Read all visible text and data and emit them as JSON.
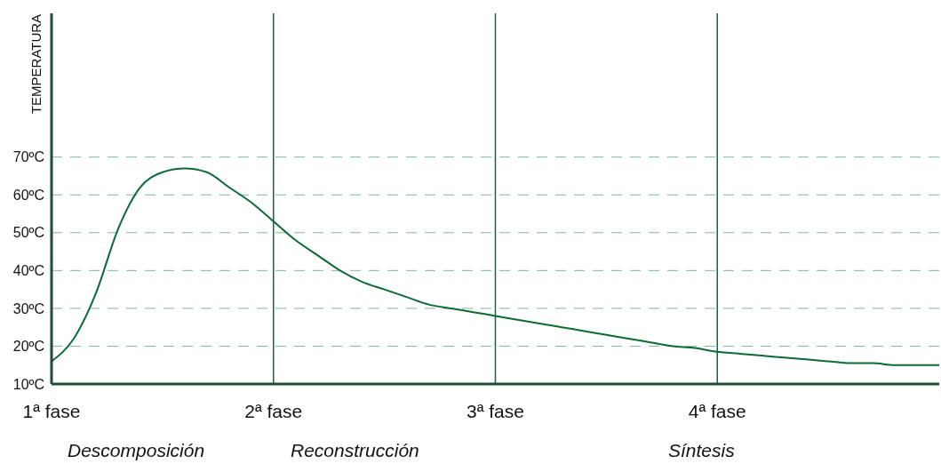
{
  "chart_data": {
    "type": "line",
    "ylabel": "TEMPERATURA",
    "categories": [
      "1ª fase",
      null,
      null,
      null,
      null,
      null,
      null,
      null,
      null,
      null,
      "2ª fase",
      null,
      null,
      null,
      null,
      null,
      null,
      null,
      null,
      null,
      "3ª fase",
      null,
      null,
      null,
      null,
      null,
      null,
      null,
      null,
      null,
      "4ª fase",
      null,
      null,
      null,
      null,
      null,
      null,
      null,
      null,
      null,
      null
    ],
    "series": [
      {
        "color": "#0b6b35",
        "values": [
          16,
          22,
          34,
          51,
          62,
          66,
          67,
          66,
          62,
          58,
          53,
          48,
          44,
          40,
          37,
          35,
          33,
          31,
          30,
          29,
          28,
          27,
          26,
          25,
          24,
          23,
          22,
          21,
          20,
          19.5,
          18.5,
          18,
          17.5,
          17,
          16.5,
          16,
          15.5,
          15.5,
          15,
          15,
          15
        ]
      }
    ],
    "ylim": [
      10,
      108
    ],
    "yticks": [
      {
        "value": 10,
        "label": "10ºC"
      },
      {
        "value": 20,
        "label": "20ºC"
      },
      {
        "value": 30,
        "label": "30ºC"
      },
      {
        "value": 40,
        "label": "40ºC"
      },
      {
        "value": 50,
        "label": "50ºC"
      },
      {
        "value": 60,
        "label": "60ºC"
      },
      {
        "value": 70,
        "label": "70ºC"
      }
    ],
    "ref_lines": [
      {
        "axis": "x",
        "value": "2ª fase",
        "color": "#0b6b35"
      },
      {
        "axis": "x",
        "value": "3ª fase",
        "color": "#0b6b35"
      },
      {
        "axis": "x",
        "value": "4ª fase",
        "color": "#0b6b35"
      }
    ],
    "annotations": [
      "Descomposición",
      "Reconstrucción",
      "Síntesis"
    ],
    "grid": "y",
    "marker": "none",
    "line_style": "solid",
    "legend": false
  }
}
